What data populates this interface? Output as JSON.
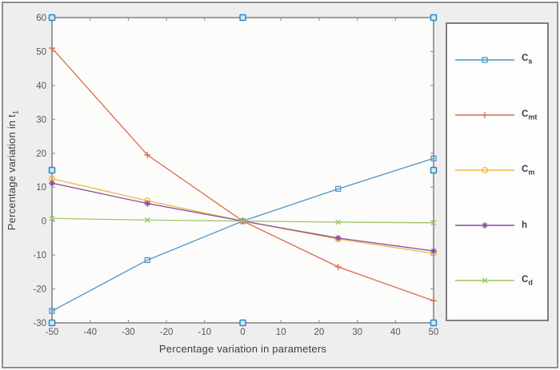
{
  "figure": {
    "background": "#eeeeee",
    "plot_background": "#fcfcfb",
    "outer_border_color": "#8e8e8e",
    "axis_color": "#878787",
    "tick_label_color": "#575757",
    "label_color": "#3d3d3d"
  },
  "chart_data": {
    "type": "line",
    "title": "",
    "xlabel": "Percentage variation in parameters",
    "ylabel": "Percentage variation in t_1",
    "ylabel_base": "Percentage variation in t",
    "ylabel_sub": "1",
    "xlim": [
      -50,
      50
    ],
    "ylim": [
      -30,
      60
    ],
    "xticks": [
      -50,
      -40,
      -30,
      -20,
      -10,
      0,
      10,
      20,
      30,
      40,
      50
    ],
    "yticks": [
      -30,
      -20,
      -10,
      0,
      10,
      20,
      30,
      40,
      50,
      60
    ],
    "grid": false,
    "legend_position": "right-outside",
    "x": [
      -50,
      -25,
      0,
      25,
      50
    ],
    "series": [
      {
        "name": "C_s",
        "label_base": "C",
        "label_sub": "s",
        "marker": "square",
        "color": "#4b96c9",
        "values": [
          -26.5,
          -11.5,
          0,
          9.5,
          18.5
        ]
      },
      {
        "name": "C_mt",
        "label_base": "C",
        "label_sub": "mt",
        "marker": "plus",
        "color": "#d96b4a",
        "values": [
          51,
          19.5,
          0,
          -13.5,
          -23.5
        ]
      },
      {
        "name": "C_m",
        "label_base": "C",
        "label_sub": "m",
        "marker": "circle",
        "color": "#e9b949",
        "values": [
          12.5,
          6,
          0,
          -5.3,
          -9.5
        ]
      },
      {
        "name": "h",
        "label_base": "h",
        "label_sub": "",
        "marker": "star",
        "color": "#8a4d9e",
        "values": [
          11.2,
          5.2,
          0,
          -5,
          -8.8
        ]
      },
      {
        "name": "C_d",
        "label_base": "C",
        "label_sub": "d",
        "marker": "x",
        "color": "#a0c566",
        "values": [
          0.8,
          0.3,
          0,
          -0.3,
          -0.5
        ]
      }
    ]
  },
  "selection_handles": {
    "visible": true,
    "border_color": "#2f86c1",
    "fill_color": "#cdeaf5",
    "locations": "axes corners and edge midpoints"
  }
}
